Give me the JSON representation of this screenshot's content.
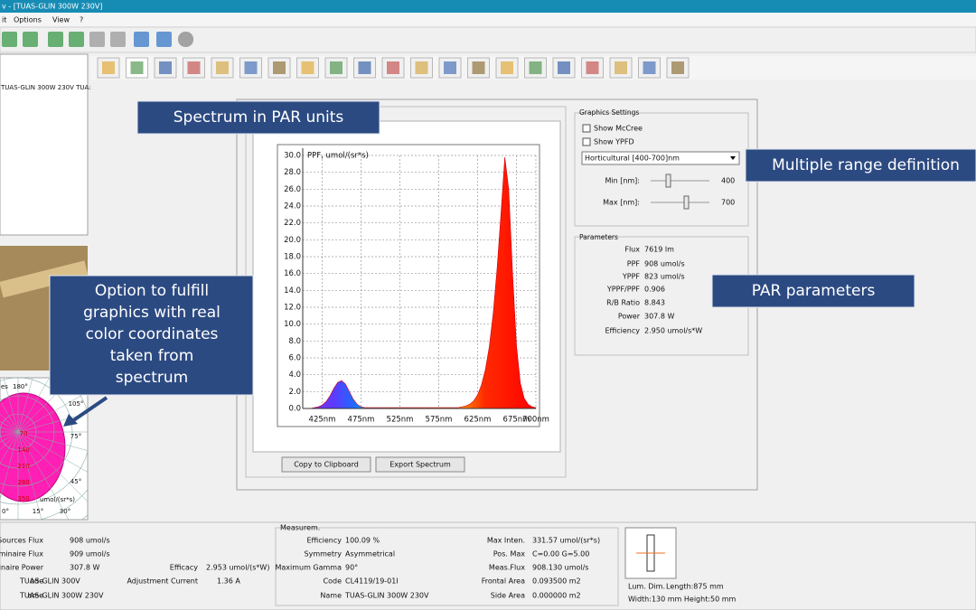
{
  "window": {
    "title": "v - [TUAS-GLIN 300W 230V]",
    "menu": [
      "it",
      "Options",
      "View",
      "?"
    ]
  },
  "tree": {
    "item": "TUAS-GLIN 300W 230V TUA:"
  },
  "polar": {
    "header": [
      "es",
      "180°"
    ],
    "angles": [
      "105°",
      "75°",
      "45°",
      "0°",
      "15°",
      "30°"
    ],
    "rings": [
      70,
      140,
      210,
      280,
      350
    ],
    "unit": "umol/(sr*s)"
  },
  "callouts": {
    "spectrum": "Spectrum in PAR units",
    "range": "Multiple range definition",
    "par": "PAR parameters",
    "color": [
      "Option to fulfill",
      "graphics with real",
      "color coordinates",
      "taken from",
      "spectrum"
    ]
  },
  "chart_data": {
    "type": "area",
    "y_label": "PPF, umol/(sr*s)",
    "x": [
      400,
      405,
      410,
      415,
      420,
      425,
      430,
      435,
      440,
      445,
      450,
      455,
      460,
      465,
      470,
      475,
      480,
      485,
      490,
      495,
      500,
      505,
      510,
      515,
      520,
      525,
      530,
      535,
      540,
      545,
      550,
      555,
      560,
      565,
      570,
      575,
      580,
      585,
      590,
      595,
      600,
      605,
      610,
      615,
      620,
      625,
      630,
      635,
      640,
      645,
      650,
      655,
      660,
      665,
      670,
      675,
      680,
      685,
      690,
      695,
      700
    ],
    "values": [
      0,
      0,
      0,
      0.1,
      0.2,
      0.4,
      0.8,
      1.5,
      2.4,
      3.1,
      3.3,
      2.9,
      2.0,
      1.1,
      0.5,
      0.2,
      0.1,
      0.1,
      0.1,
      0.1,
      0.1,
      0.1,
      0.1,
      0.1,
      0.1,
      0.1,
      0.1,
      0.1,
      0.1,
      0.1,
      0.1,
      0.1,
      0.1,
      0.1,
      0.1,
      0.1,
      0.1,
      0.1,
      0.1,
      0.1,
      0.1,
      0.2,
      0.3,
      0.5,
      0.9,
      1.6,
      2.8,
      4.6,
      7.3,
      11.2,
      16.5,
      23.0,
      29.8,
      26.0,
      16.0,
      7.5,
      3.0,
      1.2,
      0.5,
      0.2,
      0.1
    ],
    "xlim": [
      400,
      700
    ],
    "xticks": [
      {
        "value": 425,
        "label": "425nm"
      },
      {
        "value": 475,
        "label": "475nm"
      },
      {
        "value": 525,
        "label": "525nm"
      },
      {
        "value": 575,
        "label": "575nm"
      },
      {
        "value": 625,
        "label": "625nm"
      },
      {
        "value": 675,
        "label": "675nm"
      },
      {
        "value": 700,
        "label": "700nm"
      }
    ],
    "ylim": [
      0,
      30
    ],
    "yticks": [
      {
        "value": 0,
        "label": "0.0"
      },
      {
        "value": 2,
        "label": "2.0"
      },
      {
        "value": 4,
        "label": "4.0"
      },
      {
        "value": 6,
        "label": "6.0"
      },
      {
        "value": 8,
        "label": "8.0"
      },
      {
        "value": 10,
        "label": "10.0"
      },
      {
        "value": 12,
        "label": "12.0"
      },
      {
        "value": 14,
        "label": "14.0"
      },
      {
        "value": 16,
        "label": "16.0"
      },
      {
        "value": 18,
        "label": "18.0"
      },
      {
        "value": 20,
        "label": "20.0"
      },
      {
        "value": 22,
        "label": "22.0"
      },
      {
        "value": 24,
        "label": "24.0"
      },
      {
        "value": 26,
        "label": "26.0"
      },
      {
        "value": 28,
        "label": "28.0"
      },
      {
        "value": 30,
        "label": "30.0"
      }
    ],
    "grid": true
  },
  "buttons": [
    "Copy to Clipboard",
    "Export Spectrum"
  ],
  "graphics_settings": {
    "title": "Graphics Settings",
    "checks": [
      "Show McCree",
      "Show YPFD"
    ],
    "range": "Horticultural [400-700]nm",
    "min_label": "Min [nm]:",
    "min": "400",
    "max_label": "Max [nm]:",
    "max": "700"
  },
  "parameters": {
    "title": "Parameters",
    "rows": [
      [
        "Flux",
        "7619 lm"
      ],
      [
        "PPF",
        "908 umol/s"
      ],
      [
        "YPPF",
        "823 umol/s"
      ],
      [
        "YPPF/PPF",
        "0.906"
      ],
      [
        "R/B Ratio",
        "8.843"
      ],
      [
        "Power",
        "307.8 W"
      ],
      [
        "Efficiency",
        "2.950 umol/s*W"
      ]
    ]
  },
  "summary": {
    "left": [
      [
        "Sources Flux",
        "908 umol/s"
      ],
      [
        "uminaire Flux",
        "909 umol/s"
      ],
      [
        "minaire Power",
        "307.8 W"
      ],
      [
        "ode",
        "TUAS-GLIN 300V"
      ],
      [
        "ame",
        "TUAS-GLIN 300W 230V"
      ]
    ],
    "left2": [
      [
        "Efficacy",
        "2.953 umol/(s*W)"
      ],
      [
        "Adjustment Current",
        "1.36 A"
      ]
    ],
    "measure_title": "Measurem.",
    "measure": [
      [
        "Efficiency",
        "100.09 %"
      ],
      [
        "Symmetry",
        "Asymmetrical"
      ],
      [
        "Maximum Gamma",
        "90°"
      ],
      [
        "Code",
        "CL4119/19-01I"
      ],
      [
        "Name",
        "TUAS-GLIN 300W 230V"
      ]
    ],
    "measure2": [
      [
        "Max Inten.",
        "331.57 umol/(sr*s)"
      ],
      [
        "Pos. Max",
        "C=0.00 G=5.00"
      ],
      [
        "Meas.Flux",
        "908.130 umol/s"
      ],
      [
        "Frontal Area",
        "0.093500 m2"
      ],
      [
        "Side Area",
        "0.000000 m2"
      ]
    ],
    "dims": [
      "Lum. Dim.",
      "Length:875 mm",
      "Width:130 mm Height:50 mm"
    ]
  }
}
